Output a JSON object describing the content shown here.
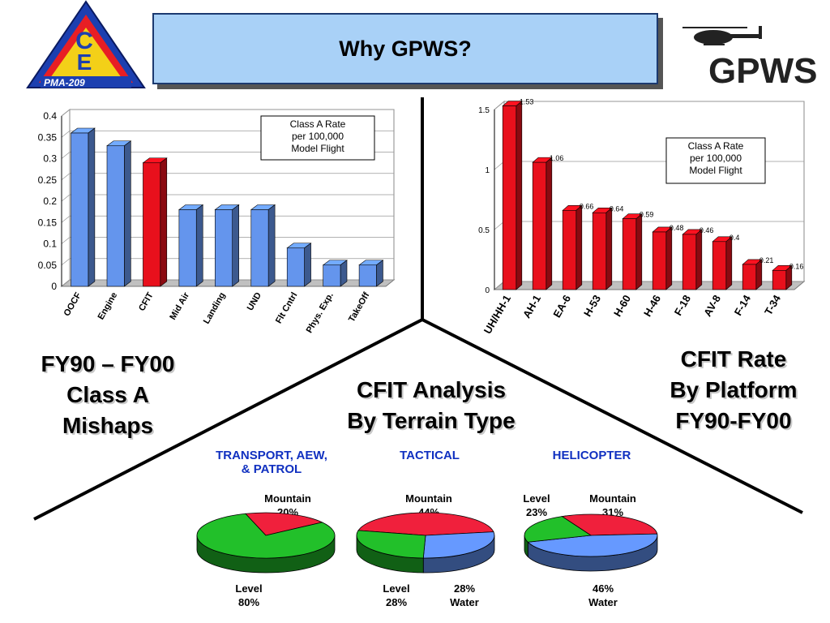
{
  "header": {
    "title": "Why GPWS?",
    "logo_text": "PMA-209",
    "brand_text": "GPWS"
  },
  "colors": {
    "blue_bar": "#6495ed",
    "red_bar": "#e8101c",
    "pie_red": "#f0203c",
    "pie_green": "#22c02a",
    "pie_blue": "#6699ff"
  },
  "labels": {
    "left": [
      "FY90 – FY00",
      "Class A",
      "Mishaps"
    ],
    "center": [
      "CFIT Analysis",
      "By Terrain Type"
    ],
    "right": [
      "CFIT Rate",
      "By Platform",
      "FY90-FY00"
    ]
  },
  "chart_data": [
    {
      "type": "bar",
      "categories": [
        "OOCF",
        "Engine",
        "CFIT",
        "Mid Air",
        "Landing",
        "UND",
        "Flt Cntrl",
        "Phys. Exp.",
        "TakeOff"
      ],
      "values": [
        0.36,
        0.33,
        0.29,
        0.18,
        0.18,
        0.18,
        0.09,
        0.05,
        0.05
      ],
      "highlight_index": 2,
      "yticks": [
        "0",
        "0.05",
        "0.1",
        "0.15",
        "0.2",
        "0.25",
        "0.3",
        "0.35",
        "0.4"
      ],
      "ylim": [
        0,
        0.4
      ],
      "legend_lines": [
        "Class A Rate",
        "per 100,000",
        "Model Flight"
      ]
    },
    {
      "type": "bar",
      "categories": [
        "UH/HH-1",
        "AH-1",
        "EA-6",
        "H-53",
        "H-60",
        "H-46",
        "F-18",
        "AV-8",
        "F-14",
        "T-34"
      ],
      "values": [
        1.53,
        1.06,
        0.66,
        0.64,
        0.59,
        0.48,
        0.46,
        0.4,
        0.21,
        0.16
      ],
      "data_labels": [
        "1.53",
        "1.06",
        "0.66",
        "0.64",
        "0.59",
        "0.48",
        "0.46",
        "0.4",
        "0.21",
        "0.16"
      ],
      "yticks": [
        "0",
        "0.5",
        "1",
        "1.5"
      ],
      "ylim": [
        0,
        1.5
      ],
      "legend_lines": [
        "Class A Rate",
        "per 100,000",
        "Model Flight"
      ]
    },
    {
      "type": "pie",
      "title_lines": [
        "TRANSPORT, AEW,",
        "& PATROL"
      ],
      "slices": [
        {
          "name": "Mountain",
          "value": 20,
          "label": "20%"
        },
        {
          "name": "Level",
          "value": 80,
          "label": "80%"
        }
      ]
    },
    {
      "type": "pie",
      "title_lines": [
        "TACTICAL"
      ],
      "slices": [
        {
          "name": "Mountain",
          "value": 44,
          "label": "44%"
        },
        {
          "name": "Water",
          "value": 28,
          "label": "28%"
        },
        {
          "name": "Level",
          "value": 28,
          "label": "28%"
        }
      ]
    },
    {
      "type": "pie",
      "title_lines": [
        "HELICOPTER"
      ],
      "slices": [
        {
          "name": "Mountain",
          "value": 31,
          "label": "31%"
        },
        {
          "name": "Water",
          "value": 46,
          "label": "46%"
        },
        {
          "name": "Level",
          "value": 23,
          "label": "23%"
        }
      ]
    }
  ]
}
